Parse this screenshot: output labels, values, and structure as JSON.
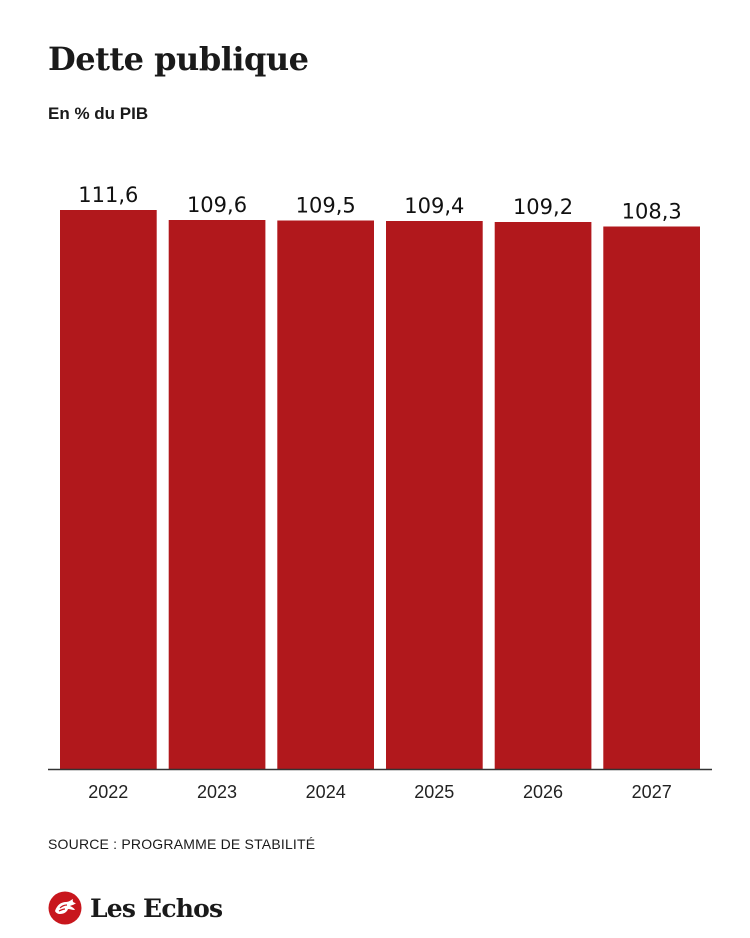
{
  "title": "Dette publique",
  "subtitle": "En % du PIB",
  "source": "SOURCE : PROGRAMME DE STABILITÉ",
  "brand": {
    "name": "Les Echos",
    "icon": "les-echos-rooster-logo-icon"
  },
  "colors": {
    "bar": "#b1181c",
    "axis": "#333333",
    "logo": "#c8161d"
  },
  "chart_data": {
    "type": "bar",
    "title": "Dette publique",
    "subtitle": "En % du PIB",
    "xlabel": "",
    "ylabel": "",
    "categories": [
      "2022",
      "2023",
      "2024",
      "2025",
      "2026",
      "2027"
    ],
    "values": [
      111.6,
      109.6,
      109.5,
      109.4,
      109.2,
      108.3
    ],
    "value_labels": [
      "111,6",
      "109,6",
      "109,5",
      "109,4",
      "109,2",
      "108,3"
    ],
    "ylim": [
      0,
      112
    ],
    "grid": false,
    "legend": "none"
  }
}
